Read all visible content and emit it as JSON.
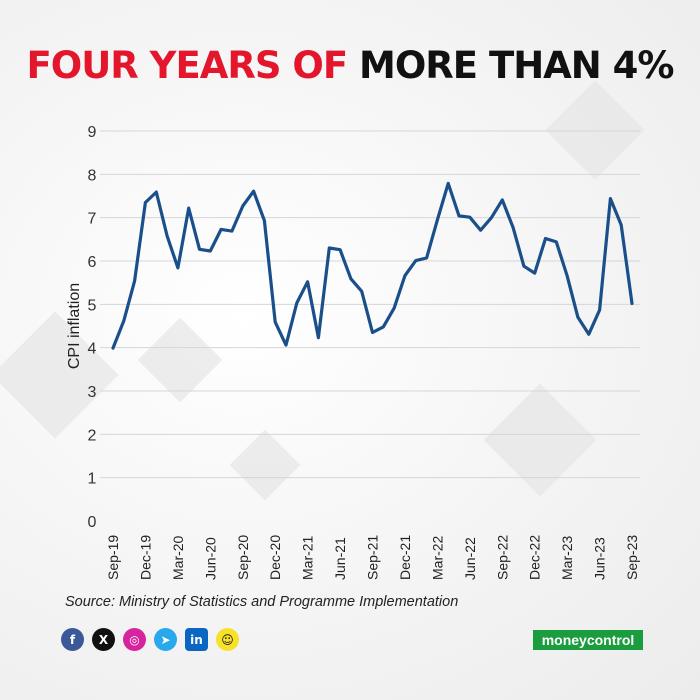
{
  "title": {
    "part_red": "FOUR YEARS OF",
    "part_black": "MORE THAN 4%"
  },
  "source": "Source: Ministry of Statistics and Programme Implementation",
  "brand": {
    "logo_text": "moneycontrol"
  },
  "social_icons": [
    "facebook-icon",
    "x-icon",
    "instagram-icon",
    "telegram-icon",
    "linkedin-icon",
    "snapchat-icon"
  ],
  "colors": {
    "line": "#1a4f8a",
    "title_red": "#e3162b",
    "title_black": "#111111",
    "grid": "#d6d6d6",
    "brand_green": "#1b9d3f"
  },
  "chart_data": {
    "type": "line",
    "ylabel": "CPI inflation",
    "xlabel": "",
    "ylim": [
      0,
      9
    ],
    "yticks": [
      0,
      1,
      2,
      3,
      4,
      5,
      6,
      7,
      8,
      9
    ],
    "grid": true,
    "xtick_labels": [
      "Sep-19",
      "Dec-19",
      "Mar-20",
      "Jun-20",
      "Sep-20",
      "Dec-20",
      "Mar-21",
      "Jun-21",
      "Sep-21",
      "Dec-21",
      "Mar-22",
      "Jun-22",
      "Sep-22",
      "Dec-22",
      "Mar-23",
      "Jun-23",
      "Sep-23"
    ],
    "series": [
      {
        "x": [
          "Sep-19",
          "Oct-19",
          "Nov-19",
          "Dec-19",
          "Jan-20",
          "Feb-20",
          "Mar-20",
          "Apr-20",
          "May-20",
          "Jun-20",
          "Jul-20",
          "Aug-20",
          "Sep-20",
          "Oct-20",
          "Nov-20",
          "Dec-20",
          "Jan-21",
          "Feb-21",
          "Mar-21",
          "Apr-21",
          "May-21",
          "Jun-21",
          "Jul-21",
          "Aug-21",
          "Sep-21",
          "Oct-21",
          "Nov-21",
          "Dec-21",
          "Jan-22",
          "Feb-22",
          "Mar-22",
          "Apr-22",
          "May-22",
          "Jun-22",
          "Jul-22",
          "Aug-22",
          "Sep-22",
          "Oct-22",
          "Nov-22",
          "Dec-22",
          "Jan-23",
          "Feb-23",
          "Mar-23",
          "Apr-23",
          "May-23",
          "Jun-23",
          "Jul-23",
          "Aug-23",
          "Sep-23"
        ],
        "values": [
          3.99,
          4.62,
          5.54,
          7.35,
          7.59,
          6.58,
          5.84,
          7.22,
          6.27,
          6.23,
          6.73,
          6.69,
          7.27,
          7.61,
          6.93,
          4.59,
          4.06,
          5.03,
          5.52,
          4.23,
          6.3,
          6.26,
          5.59,
          5.3,
          4.35,
          4.48,
          4.91,
          5.66,
          6.01,
          6.07,
          6.95,
          7.79,
          7.04,
          7.01,
          6.71,
          7.0,
          7.41,
          6.77,
          5.88,
          5.72,
          6.52,
          6.44,
          5.66,
          4.7,
          4.31,
          4.87,
          7.44,
          6.83,
          5.02
        ]
      }
    ]
  }
}
